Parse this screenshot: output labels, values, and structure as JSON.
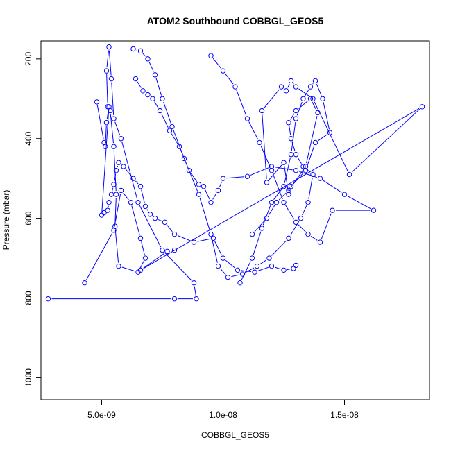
{
  "chart_data": {
    "type": "line",
    "title": "ATOM2 Southbound COBBGL_GEOS5",
    "xlabel": "COBBGL_GEOS5",
    "ylabel": "Pressure (mbar)",
    "x_ticks": [
      {
        "value": 5e-09,
        "label": "5.0e-09"
      },
      {
        "value": 1e-08,
        "label": "1.0e-08"
      },
      {
        "value": 1.5e-08,
        "label": "1.5e-08"
      }
    ],
    "y_ticks": [
      {
        "value": 200,
        "label": "200"
      },
      {
        "value": 400,
        "label": "400"
      },
      {
        "value": 600,
        "label": "600"
      },
      {
        "value": 800,
        "label": "800"
      },
      {
        "value": 1000,
        "label": "1000"
      }
    ],
    "xlim": [
      2.5e-09,
      1.85e-08
    ],
    "ylim": [
      1055,
      155
    ],
    "y_reversed": true,
    "color": "#0000ff",
    "marker": "open-circle",
    "series": [
      {
        "x": [
          2.8e-09,
          8e-09,
          8.9e-09,
          8.8e-09,
          7.5e-09,
          6.5e-09,
          5.8e-09,
          5.5e-09,
          5.4e-09,
          5.3e-09,
          5.2e-09,
          5.25e-09,
          5.35e-09,
          5.5e-09,
          5.6e-09,
          5.55e-09,
          5.7e-09,
          6.5e-09,
          6.8e-09,
          6.6e-09,
          6.2e-09,
          5.8e-09,
          5.5e-09,
          4.3e-09
        ],
        "y": [
          802,
          802,
          802,
          762,
          680,
          560,
          400,
          350,
          250,
          170,
          230,
          320,
          330,
          420,
          540,
          620,
          720,
          735,
          700,
          650,
          560,
          530,
          630,
          762
        ]
      },
      {
        "x": [
          4.8e-09,
          5.1e-09,
          5.15e-09,
          5.2e-09,
          5.3e-09,
          5e-09,
          5.1e-09,
          5.25e-09,
          5.3e-09,
          5.4e-09,
          5.5e-09,
          5.6e-09,
          5.7e-09,
          5.9e-09,
          6.3e-09,
          6.6e-09,
          6.8e-09,
          7e-09,
          7.2e-09,
          7.6e-09,
          8e-09,
          8.8e-09,
          9.6e-09,
          1e-08,
          1.06e-08,
          1.13e-08,
          1.2e-08,
          1.25e-08,
          1.29e-08,
          1.3e-08
        ],
        "y": [
          308,
          410,
          420,
          360,
          320,
          592,
          586,
          580,
          560,
          540,
          515,
          480,
          460,
          470,
          500,
          520,
          570,
          590,
          600,
          610,
          640,
          660,
          650,
          700,
          730,
          735,
          720,
          730,
          726,
          718
        ]
      },
      {
        "x": [
          1.07e-08,
          1.12e-08,
          1.16e-08,
          1.2e-08,
          1.25e-08,
          1.28e-08,
          1.3e-08,
          1.33e-08,
          1.36e-08,
          1.38e-08,
          1.41e-08,
          1.44e-08,
          1.38e-08,
          1.34e-08,
          1.28e-08,
          1.27e-08,
          1.25e-08,
          1.18e-08,
          1.16e-08,
          1.24e-08,
          1.26e-08,
          1.28e-08,
          1.3e-08,
          1.37e-08,
          1.52e-08,
          1.82e-08,
          6.6e-09,
          7.7e-09,
          8e-09
        ],
        "y": [
          762,
          700,
          625,
          560,
          520,
          440,
          350,
          300,
          270,
          255,
          300,
          385,
          410,
          480,
          520,
          540,
          460,
          510,
          330,
          270,
          280,
          255,
          270,
          300,
          490,
          320,
          730,
          683,
          680
        ]
      },
      {
        "x": [
          9.5e-09,
          1e-08,
          1.05e-08,
          1.1e-08,
          1.15e-08,
          1.2e-08,
          1.25e-08,
          1.3e-08,
          1.35e-08,
          1.4e-08,
          1.45e-08,
          1.62e-08,
          1.5e-08,
          1.4e-08,
          1.3e-08,
          1.2e-08,
          1.1e-08,
          1e-08,
          9.8e-09,
          9.5e-09,
          9.2e-09,
          9e-09,
          8.6e-09,
          8.2e-09,
          7.8e-09,
          7.4e-09,
          7.1e-09,
          6.9e-09,
          6.7e-09,
          6.4e-09
        ],
        "y": [
          192,
          230,
          270,
          350,
          410,
          480,
          560,
          610,
          640,
          660,
          580,
          580,
          540,
          500,
          480,
          470,
          495,
          500,
          530,
          560,
          520,
          515,
          480,
          420,
          380,
          330,
          300,
          290,
          280,
          250
        ]
      },
      {
        "x": [
          6.3e-09,
          6.6e-09,
          6.9e-09,
          7.2e-09,
          7.5e-09,
          7.9e-09,
          8.4e-09,
          9e-09,
          9.5e-09,
          9.8e-09,
          1.02e-08,
          1.08e-08,
          1.14e-08,
          1.19e-08,
          1.27e-08,
          1.32e-08,
          1.35e-08,
          1.37e-08,
          1.33e-08,
          1.3e-08,
          1.28e-08,
          1.27e-08,
          1.3e-08,
          1.36e-08,
          1.39e-08,
          1.34e-08,
          1.27e-08,
          1.22e-08,
          1.18e-08,
          1.12e-08
        ],
        "y": [
          175,
          180,
          200,
          240,
          300,
          370,
          450,
          540,
          640,
          720,
          748,
          740,
          720,
          700,
          650,
          600,
          560,
          490,
          470,
          440,
          400,
          360,
          330,
          300,
          335,
          470,
          530,
          560,
          600,
          640
        ]
      }
    ]
  }
}
